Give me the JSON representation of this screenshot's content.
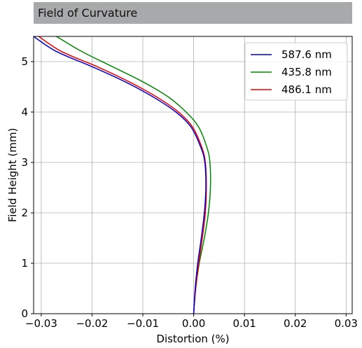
{
  "header": {
    "title": "Field of Curvature"
  },
  "chart_data": {
    "type": "line",
    "xlabel": "Distortion (%)",
    "ylabel": "Field Height (mm)",
    "xlim": [
      -0.0315,
      0.0312
    ],
    "ylim": [
      0,
      5.5
    ],
    "xticks": [
      -0.03,
      -0.02,
      -0.01,
      0.0,
      0.01,
      0.02,
      0.03
    ],
    "xtick_labels": [
      "−0.03",
      "−0.02",
      "−0.01",
      "0.00",
      "0.01",
      "0.02",
      "0.03"
    ],
    "yticks": [
      0,
      1,
      2,
      3,
      4,
      5
    ],
    "ytick_labels": [
      "0",
      "1",
      "2",
      "3",
      "4",
      "5"
    ],
    "grid": true,
    "legend_position": "top-right",
    "series": [
      {
        "name": "587.6 nm",
        "color": "#0000cc",
        "x": [
          0.0,
          0.0003,
          0.0008,
          0.0015,
          0.0021,
          0.0024,
          0.0022,
          0.0014,
          -0.0005,
          -0.0035,
          -0.008,
          -0.0135,
          -0.02,
          -0.027,
          -0.0315
        ],
        "y": [
          0.0,
          0.5,
          1.0,
          1.5,
          2.0,
          2.5,
          3.0,
          3.3,
          3.7,
          4.0,
          4.3,
          4.6,
          4.9,
          5.2,
          5.5
        ]
      },
      {
        "name": "435.8 nm",
        "color": "#008800",
        "x": [
          0.0,
          0.0004,
          0.0011,
          0.0021,
          0.0029,
          0.0033,
          0.0032,
          0.0026,
          0.001,
          -0.0015,
          -0.005,
          -0.01,
          -0.016,
          -0.022,
          -0.027
        ],
        "y": [
          0.0,
          0.5,
          1.0,
          1.5,
          2.0,
          2.5,
          3.0,
          3.3,
          3.7,
          4.0,
          4.3,
          4.6,
          4.9,
          5.2,
          5.5
        ]
      },
      {
        "name": "486.1 nm",
        "color": "#ee0000",
        "x": [
          0.0,
          0.0004,
          0.001,
          0.0017,
          0.0023,
          0.0025,
          0.0023,
          0.0016,
          -0.0002,
          -0.003,
          -0.0073,
          -0.0127,
          -0.019,
          -0.026,
          -0.0305
        ],
        "y": [
          0.0,
          0.5,
          1.0,
          1.5,
          2.0,
          2.5,
          3.0,
          3.3,
          3.7,
          4.0,
          4.3,
          4.6,
          4.9,
          5.2,
          5.5
        ]
      }
    ]
  }
}
